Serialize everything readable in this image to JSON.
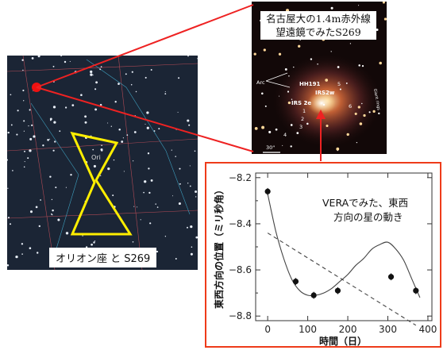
{
  "star_map": {
    "constellation_label": "Ori",
    "caption": "オリオン座 と S269"
  },
  "ir_image": {
    "caption_line1": "名古屋大の1.4m赤外線",
    "caption_line2": "望遠鏡でみたS269",
    "labels": {
      "arc": "Arc",
      "hh191": "HH191",
      "irs2e": "IRS 2e",
      "irs2w": "IRS2w",
      "giant_rings": "Giant rings",
      "scale": "30\"",
      "n1": "1",
      "n2": "2",
      "n3": "3",
      "n4": "4",
      "n5": "5",
      "n6": "6"
    }
  },
  "colors": {
    "accent_red": "#ee3b1a",
    "orion_yellow": "#ffee00"
  },
  "chart_data": {
    "type": "scatter",
    "title": "",
    "annotation_line1": "VERAでみた、東西",
    "annotation_line2": "方向の星の動き",
    "xlabel": "時間（日）",
    "ylabel": "東西方向の位置（ミリ秒角）",
    "xlim": [
      -30,
      410
    ],
    "ylim": [
      -8.82,
      -8.18
    ],
    "x_ticks": [
      0,
      100,
      200,
      300,
      400
    ],
    "y_ticks": [
      -8.2,
      -8.4,
      -8.6,
      -8.8
    ],
    "y_tick_labels": [
      "−8.2",
      "−8.4",
      "−8.6",
      "−8.8"
    ],
    "x_tick_labels": [
      "0",
      "100",
      "200",
      "300",
      "400"
    ],
    "series": [
      {
        "style": "points-with-errorbars",
        "x": [
          0,
          70,
          115,
          175,
          308,
          370
        ],
        "y": [
          -8.26,
          -8.65,
          -8.71,
          -8.69,
          -8.63,
          -8.69
        ],
        "yerr": [
          0.015,
          0.015,
          0.015,
          0.015,
          0.015,
          0.015
        ]
      },
      {
        "style": "fitted-curve",
        "x": [
          0,
          20,
          40,
          60,
          80,
          100,
          120,
          140,
          160,
          180,
          200,
          220,
          240,
          260,
          280,
          300,
          320,
          340,
          360,
          380
        ],
        "y": [
          -8.27,
          -8.43,
          -8.55,
          -8.64,
          -8.69,
          -8.71,
          -8.71,
          -8.7,
          -8.68,
          -8.65,
          -8.62,
          -8.58,
          -8.55,
          -8.51,
          -8.49,
          -8.48,
          -8.51,
          -8.56,
          -8.64,
          -8.72
        ]
      },
      {
        "style": "linear-trend-dashed",
        "x": [
          0,
          370
        ],
        "y": [
          -8.44,
          -8.84
        ]
      }
    ]
  }
}
